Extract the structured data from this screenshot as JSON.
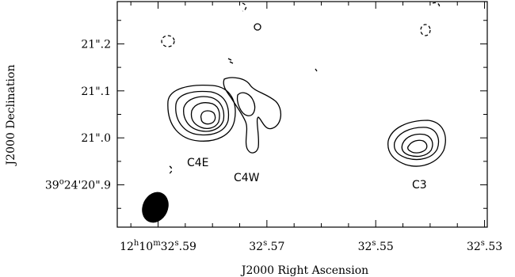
{
  "chart_data": {
    "type": "contour",
    "xlabel": "J2000 Right Ascension",
    "ylabel": "J2000 Declination",
    "x_ticks": [
      {
        "value": 32.59,
        "label": "12h10m32s.59"
      },
      {
        "value": 32.57,
        "label": "32s.57"
      },
      {
        "value": 32.55,
        "label": "32s.55"
      },
      {
        "value": 32.53,
        "label": "32s.53"
      }
    ],
    "x_tick_parts": [
      {
        "main": "12",
        "sup1": "h",
        "mid": "10",
        "sup2": "m",
        "mid2": "32",
        "sup3": "s",
        "tail": ".59"
      },
      {
        "main": "32",
        "sup3": "s",
        "tail": ".57"
      },
      {
        "main": "32",
        "sup3": "s",
        "tail": ".55"
      },
      {
        "main": "32",
        "sup3": "s",
        "tail": ".53"
      }
    ],
    "y_ticks": [
      {
        "value": 20.9,
        "label": "39o24'20\".9"
      },
      {
        "value": 21.0,
        "label": "21\".0"
      },
      {
        "value": 21.1,
        "label": "21\".1"
      },
      {
        "value": 21.2,
        "label": "21\".2"
      }
    ],
    "y_tick_parts": [
      {
        "prefix": "39",
        "sup": "o",
        "rest": "24'20\".9"
      },
      {
        "prefix": "",
        "sup": "",
        "rest": "21\".0"
      },
      {
        "prefix": "",
        "sup": "",
        "rest": "21\".1"
      },
      {
        "prefix": "",
        "sup": "",
        "rest": "21\".2"
      }
    ],
    "xlim": [
      32.5975,
      32.5295
    ],
    "ylim": [
      20.81,
      21.29
    ],
    "sources": [
      {
        "name": "C4E",
        "ra": 32.5795,
        "dec": 21.05,
        "label_ra": 32.5825,
        "label_dec": 20.925
      },
      {
        "name": "C4W",
        "ra": 32.5725,
        "dec": 21.03,
        "label_ra": 32.5735,
        "label_dec": 20.88
      },
      {
        "name": "C3",
        "ra": 32.5475,
        "dec": 20.99,
        "label_ra": 32.5475,
        "label_dec": 20.85
      }
    ],
    "beam": {
      "ra": 32.5935,
      "dec": 20.86,
      "description": "filled ellipse"
    },
    "grid": false
  }
}
